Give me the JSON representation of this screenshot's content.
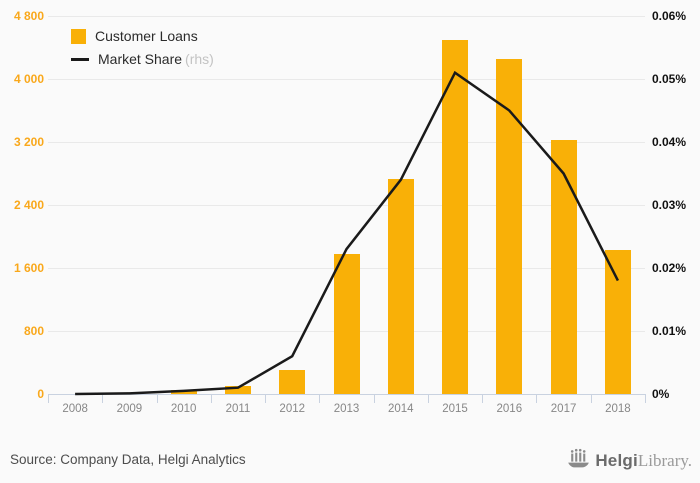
{
  "legend": {
    "customer_loans_label": "Customer Loans",
    "market_share_label": "Market Share",
    "market_share_suffix": "(rhs)"
  },
  "footer": {
    "source_text": "Source: Company Data, Helgi Analytics",
    "logo_text_bold": "Helgi",
    "logo_text_light": "Library.",
    "logo_icon": "helgi-ship-icon"
  },
  "colors": {
    "background": "#fafafa",
    "bar_fill": "#f9b007",
    "line_stroke": "#1a1a1a",
    "left_axis_label": "#f9a81b",
    "right_axis_label": "#111111",
    "x_axis_label": "#878787",
    "gridline": "#e9e9e9",
    "axis_baseline": "#c9d2e0"
  },
  "chart_data": {
    "type": "bar",
    "title": "",
    "categories": [
      "2008",
      "2009",
      "2010",
      "2011",
      "2012",
      "2013",
      "2014",
      "2015",
      "2016",
      "2017",
      "2018"
    ],
    "series": [
      {
        "name": "Customer Loans",
        "type": "bar",
        "axis": "left",
        "values": [
          0,
          0,
          50,
          105,
          305,
          1775,
          2730,
          4490,
          4250,
          3230,
          1830
        ]
      },
      {
        "name": "Market Share (rhs)",
        "type": "line",
        "axis": "right",
        "values_percent": [
          0.0,
          0.0001,
          0.0005,
          0.001,
          0.006,
          0.023,
          0.034,
          0.051,
          0.045,
          0.035,
          0.018
        ]
      }
    ],
    "left_axis": {
      "min": 0,
      "max": 4800,
      "tick_labels_bottom_to_top": [
        "0",
        "800",
        "1 600",
        "2 400",
        "3 200",
        "4 000",
        "4 800"
      ]
    },
    "right_axis": {
      "min": 0,
      "max": 0.06,
      "tick_labels_bottom_to_top": [
        "0%",
        "0.01%",
        "0.02%",
        "0.03%",
        "0.04%",
        "0.05%",
        "0.06%"
      ]
    },
    "grid": "horizontal",
    "legend_position": "top-left"
  }
}
